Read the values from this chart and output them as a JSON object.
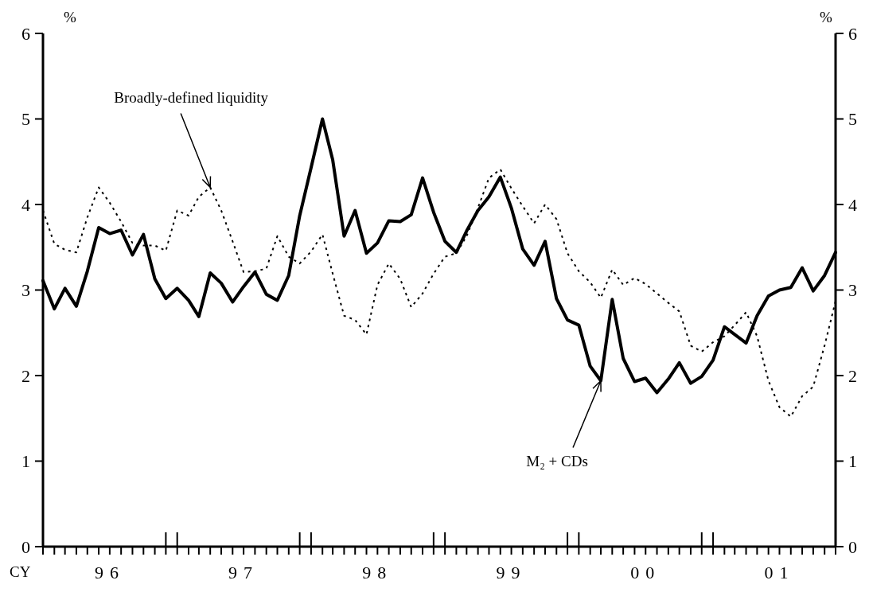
{
  "chart_data": {
    "type": "line",
    "xlabel": "CY",
    "ylabel": "%",
    "y2label": "%",
    "x": [
      "1996-01",
      "1996-02",
      "1996-03",
      "1996-04",
      "1996-05",
      "1996-06",
      "1996-07",
      "1996-08",
      "1996-09",
      "1996-10",
      "1996-11",
      "1996-12",
      "1997-01",
      "1997-02",
      "1997-03",
      "1997-04",
      "1997-05",
      "1997-06",
      "1997-07",
      "1997-08",
      "1997-09",
      "1997-10",
      "1997-11",
      "1997-12",
      "1998-01",
      "1998-02",
      "1998-03",
      "1998-04",
      "1998-05",
      "1998-06",
      "1998-07",
      "1998-08",
      "1998-09",
      "1998-10",
      "1998-11",
      "1998-12",
      "1999-01",
      "1999-02",
      "1999-03",
      "1999-04",
      "1999-05",
      "1999-06",
      "1999-07",
      "1999-08",
      "1999-09",
      "1999-10",
      "1999-11",
      "1999-12",
      "2000-01",
      "2000-02",
      "2000-03",
      "2000-04",
      "2000-05",
      "2000-06",
      "2000-07",
      "2000-08",
      "2000-09",
      "2000-10",
      "2000-11",
      "2000-12",
      "2001-01",
      "2001-02",
      "2001-03",
      "2001-04",
      "2001-05",
      "2001-06",
      "2001-07",
      "2001-08",
      "2001-09",
      "2001-10",
      "2001-11",
      "2001-12"
    ],
    "series": [
      {
        "color": "#000000",
        "line_style": "solid",
        "values": [
          3.11,
          2.78,
          3.02,
          2.81,
          3.22,
          3.73,
          3.66,
          3.7,
          3.41,
          3.65,
          3.13,
          2.9,
          3.02,
          2.88,
          2.69,
          3.2,
          3.08,
          2.86,
          3.04,
          3.21,
          2.95,
          2.88,
          3.17,
          3.87,
          4.43,
          5.0,
          4.52,
          3.63,
          3.93,
          3.43,
          3.55,
          3.81,
          3.8,
          3.88,
          4.31,
          3.91,
          3.57,
          3.44,
          3.69,
          3.93,
          4.09,
          4.32,
          3.96,
          3.48,
          3.29,
          3.57,
          2.9,
          2.65,
          2.59,
          2.11,
          1.94,
          2.89,
          2.2,
          1.93,
          1.97,
          1.8,
          1.96,
          2.15,
          1.91,
          1.99,
          2.18,
          2.57,
          2.48,
          2.38,
          2.7,
          2.93,
          3.0,
          3.03,
          3.26,
          2.99,
          3.17,
          3.44
        ]
      },
      {
        "color": "#000000",
        "line_style": "dotted",
        "values": [
          3.93,
          3.54,
          3.47,
          3.44,
          3.85,
          4.2,
          4.02,
          3.8,
          3.55,
          3.52,
          3.52,
          3.46,
          3.93,
          3.87,
          4.09,
          4.2,
          3.93,
          3.57,
          3.21,
          3.22,
          3.25,
          3.63,
          3.39,
          3.31,
          3.45,
          3.65,
          3.19,
          2.7,
          2.65,
          2.48,
          3.06,
          3.31,
          3.13,
          2.8,
          2.96,
          3.19,
          3.39,
          3.43,
          3.63,
          3.96,
          4.31,
          4.41,
          4.19,
          3.98,
          3.78,
          4.0,
          3.83,
          3.43,
          3.22,
          3.09,
          2.91,
          3.24,
          3.06,
          3.14,
          3.07,
          2.96,
          2.85,
          2.75,
          2.35,
          2.28,
          2.39,
          2.46,
          2.59,
          2.74,
          2.46,
          1.94,
          1.63,
          1.52,
          1.76,
          1.87,
          2.35,
          2.87
        ]
      }
    ],
    "xlim": [
      "1996-01",
      "2001-12"
    ],
    "xticks": [
      {
        "value": "1996-01",
        "label": null
      },
      {
        "value": "1996-02",
        "label": null
      },
      {
        "value": "1996-03",
        "label": null
      },
      {
        "value": "1996-04",
        "label": null
      },
      {
        "value": "1996-05",
        "label": null
      },
      {
        "value": "1996-06",
        "label": null
      },
      {
        "value": "1996-07",
        "label": null
      },
      {
        "value": "1996-08",
        "label": null
      },
      {
        "value": "1996-09",
        "label": null
      },
      {
        "value": "1996-10",
        "label": null
      },
      {
        "value": "1996-11",
        "label": null
      },
      {
        "value": "1996-12",
        "label": null
      },
      {
        "value": "1997-01",
        "label": null
      },
      {
        "value": "1997-02",
        "label": null
      },
      {
        "value": "1997-03",
        "label": null
      },
      {
        "value": "1997-04",
        "label": null
      },
      {
        "value": "1997-05",
        "label": null
      },
      {
        "value": "1997-06",
        "label": null
      },
      {
        "value": "1997-07",
        "label": null
      },
      {
        "value": "1997-08",
        "label": null
      },
      {
        "value": "1997-09",
        "label": null
      },
      {
        "value": "1997-10",
        "label": null
      },
      {
        "value": "1997-11",
        "label": null
      },
      {
        "value": "1997-12",
        "label": null
      },
      {
        "value": "1998-01",
        "label": null
      },
      {
        "value": "1998-02",
        "label": null
      },
      {
        "value": "1998-03",
        "label": null
      },
      {
        "value": "1998-04",
        "label": null
      },
      {
        "value": "1998-05",
        "label": null
      },
      {
        "value": "1998-06",
        "label": null
      },
      {
        "value": "1998-07",
        "label": null
      },
      {
        "value": "1998-08",
        "label": null
      },
      {
        "value": "1998-09",
        "label": null
      },
      {
        "value": "1998-10",
        "label": null
      },
      {
        "value": "1998-11",
        "label": null
      },
      {
        "value": "1998-12",
        "label": null
      },
      {
        "value": "1999-01",
        "label": null
      },
      {
        "value": "1999-02",
        "label": null
      },
      {
        "value": "1999-03",
        "label": null
      },
      {
        "value": "1999-04",
        "label": null
      },
      {
        "value": "1999-05",
        "label": null
      },
      {
        "value": "1999-06",
        "label": null
      },
      {
        "value": "1999-07",
        "label": null
      },
      {
        "value": "1999-08",
        "label": null
      },
      {
        "value": "1999-09",
        "label": null
      },
      {
        "value": "1999-10",
        "label": null
      },
      {
        "value": "1999-11",
        "label": null
      },
      {
        "value": "1999-12",
        "label": null
      },
      {
        "value": "2000-01",
        "label": null
      },
      {
        "value": "2000-02",
        "label": null
      },
      {
        "value": "2000-03",
        "label": null
      },
      {
        "value": "2000-04",
        "label": null
      },
      {
        "value": "2000-05",
        "label": null
      },
      {
        "value": "2000-06",
        "label": null
      },
      {
        "value": "2000-07",
        "label": null
      },
      {
        "value": "2000-08",
        "label": null
      },
      {
        "value": "2000-09",
        "label": null
      },
      {
        "value": "2000-10",
        "label": null
      },
      {
        "value": "2000-11",
        "label": null
      },
      {
        "value": "2000-12",
        "label": null
      },
      {
        "value": "2001-01",
        "label": null
      },
      {
        "value": "2001-02",
        "label": null
      },
      {
        "value": "2001-03",
        "label": null
      },
      {
        "value": "2001-04",
        "label": null
      },
      {
        "value": "2001-05",
        "label": null
      },
      {
        "value": "2001-06",
        "label": null
      },
      {
        "value": "2001-07",
        "label": null
      },
      {
        "value": "2001-08",
        "label": null
      },
      {
        "value": "2001-09",
        "label": null
      },
      {
        "value": "2001-10",
        "label": null
      },
      {
        "value": "2001-11",
        "label": null
      },
      {
        "value": "2001-12",
        "label": null
      },
      {
        "value": "1996-07",
        "label": "96"
      },
      {
        "value": "1997-07",
        "label": "97"
      },
      {
        "value": "1998-07",
        "label": "98"
      },
      {
        "value": "1999-07",
        "label": "99"
      },
      {
        "value": "2000-07",
        "label": "00"
      },
      {
        "value": "2001-07",
        "label": "01"
      }
    ],
    "ylim": [
      0,
      6
    ],
    "yticks": [
      0,
      1,
      2,
      3,
      4,
      5,
      6
    ],
    "y2lim": [
      0,
      6
    ],
    "y2ticks": [
      0,
      1,
      2,
      3,
      4,
      5,
      6
    ],
    "grid": false,
    "marker": "none",
    "annotations": [
      {
        "text": "Broadly-defined liquidity",
        "x": "1997-04",
        "y": 4.2
      },
      {
        "text": "M₂ + CDs",
        "x": "2000-03",
        "y": 1.94
      }
    ]
  }
}
